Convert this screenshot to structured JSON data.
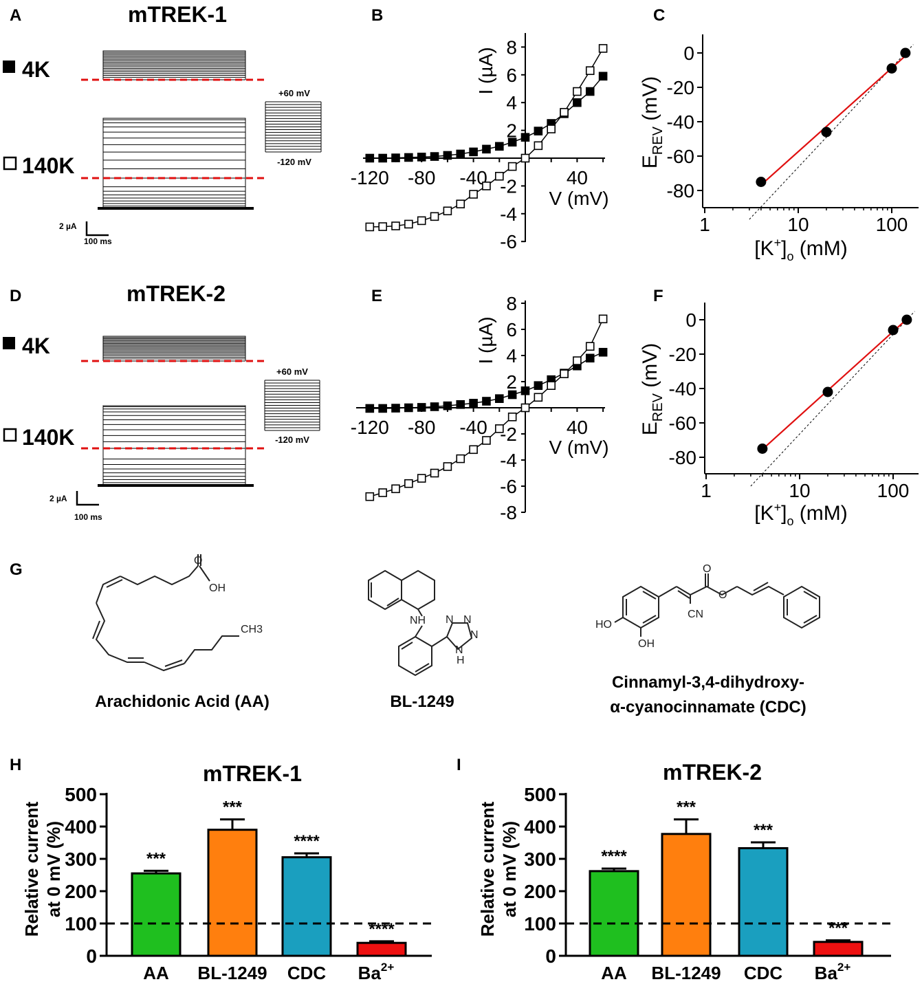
{
  "panel_letters": {
    "A": "A",
    "B": "B",
    "C": "C",
    "D": "D",
    "E": "E",
    "F": "F",
    "G": "G",
    "H": "H",
    "I": "I"
  },
  "traces": [
    {
      "title": "mTREK-1",
      "label_4k": "4K",
      "label_140k": "140K",
      "protocol_top": "+60 mV",
      "protocol_bottom": "-120 mV",
      "scale_current": "2 µA",
      "scale_time": "100 ms",
      "n_sweeps": 19
    },
    {
      "title": "mTREK-2",
      "label_4k": "4K",
      "label_140k": "140K",
      "protocol_top": "+60 mV",
      "protocol_bottom": "-120 mV",
      "scale_current": "2 µA",
      "scale_time": "100 ms",
      "n_sweeps": 19
    }
  ],
  "structures": {
    "aa": {
      "name": "Arachidonic Acid (AA)",
      "atoms": {
        "O": "O",
        "OH": "OH",
        "CH3": "CH3"
      }
    },
    "bl": {
      "name": "BL-1249",
      "atoms": {
        "NH": "NH",
        "N1": "N",
        "N2": "N",
        "N3": "N",
        "N4": "N",
        "H": "H"
      }
    },
    "cdc": {
      "name_line1": "Cinnamyl-3,4-dihydroxy-",
      "name_line2": "α-cyanocinnamate (CDC)",
      "atoms": {
        "O1": "O",
        "O2": "O",
        "CN": "CN",
        "HO": "HO",
        "OH": "OH"
      }
    }
  },
  "chart_data": [
    {
      "id": "B",
      "type": "scatter",
      "panel": "B",
      "xlabel": "V (mV)",
      "ylabel": "I (µA)",
      "xlim": [
        -125,
        60
      ],
      "ylim": [
        -6,
        8
      ],
      "x_ticks": [
        -120,
        -80,
        -40,
        40
      ],
      "y_ticks": [
        -6,
        -4,
        -2,
        2,
        4,
        6,
        8
      ],
      "x": [
        -120,
        -110,
        -100,
        -90,
        -80,
        -70,
        -60,
        -50,
        -40,
        -30,
        -20,
        -10,
        0,
        10,
        20,
        30,
        40,
        50,
        60
      ],
      "series": [
        {
          "name": "4K",
          "marker": "filled-square",
          "values": [
            0,
            0,
            0.02,
            0.05,
            0.08,
            0.12,
            0.2,
            0.3,
            0.45,
            0.65,
            0.85,
            1.15,
            1.5,
            1.95,
            2.5,
            3.2,
            4.0,
            4.8,
            5.9
          ]
        },
        {
          "name": "140K",
          "marker": "open-square",
          "values": [
            -4.95,
            -4.93,
            -4.88,
            -4.75,
            -4.5,
            -4.2,
            -3.8,
            -3.3,
            -2.6,
            -2.0,
            -1.3,
            -0.6,
            0,
            0.9,
            2.1,
            3.3,
            4.8,
            6.3,
            7.9
          ]
        }
      ]
    },
    {
      "id": "C",
      "type": "scatter",
      "panel": "C",
      "xlabel": "[K+]o (mM)",
      "ylabel": "EREV (mV)",
      "xscale": "log",
      "xlim": [
        1,
        150
      ],
      "ylim": [
        -90,
        10
      ],
      "x_ticks": [
        1,
        10,
        100
      ],
      "y_ticks": [
        0,
        -20,
        -40,
        -60,
        -80
      ],
      "x": [
        4,
        20,
        100,
        140
      ],
      "values": [
        -75,
        -46,
        -9,
        0
      ],
      "fit": "linear (red)",
      "reference": "Nernst (dashed)"
    },
    {
      "id": "E",
      "type": "scatter",
      "panel": "E",
      "xlabel": "V (mV)",
      "ylabel": "I (µA)",
      "xlim": [
        -125,
        60
      ],
      "ylim": [
        -8,
        8
      ],
      "x_ticks": [
        -120,
        -80,
        -40,
        40
      ],
      "y_ticks": [
        -8,
        -6,
        -4,
        -2,
        2,
        4,
        6,
        8
      ],
      "x": [
        -120,
        -110,
        -100,
        -90,
        -80,
        -70,
        -60,
        -50,
        -40,
        -30,
        -20,
        -10,
        0,
        10,
        20,
        30,
        40,
        50,
        60
      ],
      "series": [
        {
          "name": "4K",
          "marker": "filled-square",
          "values": [
            -0.05,
            -0.05,
            -0.03,
            0,
            0.03,
            0.08,
            0.15,
            0.25,
            0.35,
            0.5,
            0.7,
            1.0,
            1.3,
            1.7,
            2.15,
            2.65,
            3.2,
            3.8,
            4.25
          ]
        },
        {
          "name": "140K",
          "marker": "open-square",
          "values": [
            -6.8,
            -6.5,
            -6.2,
            -5.8,
            -5.4,
            -5.0,
            -4.5,
            -3.9,
            -3.2,
            -2.5,
            -1.6,
            -0.7,
            0,
            0.8,
            1.7,
            2.6,
            3.6,
            4.7,
            6.8
          ]
        }
      ]
    },
    {
      "id": "F",
      "type": "scatter",
      "panel": "F",
      "xlabel": "[K+]o (mM)",
      "ylabel": "EREV (mV)",
      "xscale": "log",
      "xlim": [
        1,
        150
      ],
      "ylim": [
        -90,
        10
      ],
      "x_ticks": [
        1,
        10,
        100
      ],
      "y_ticks": [
        0,
        -20,
        -40,
        -60,
        -80
      ],
      "x": [
        4,
        20,
        100,
        140
      ],
      "values": [
        -75,
        -42,
        -6,
        0
      ],
      "fit": "linear (red)",
      "reference": "Nernst (dashed)"
    },
    {
      "id": "H",
      "type": "bar",
      "panel": "H",
      "title": "mTREK-1",
      "ylabel": "Relative current at 0 mV (%)",
      "ylabel_line1": "Relative current",
      "ylabel_line2": "at 0 mV (%)",
      "ylim": [
        0,
        500
      ],
      "y_ticks": [
        0,
        100,
        200,
        300,
        400,
        500
      ],
      "baseline": 100,
      "categories": [
        "AA",
        "BL-1249",
        "CDC",
        "Ba2+"
      ],
      "values": [
        255,
        390,
        305,
        40
      ],
      "errors": [
        8,
        32,
        12,
        5
      ],
      "significance": [
        "***",
        "***",
        "****",
        "****"
      ],
      "colors": [
        "#1fbf1f",
        "#ff7f0e",
        "#1a9fbf",
        "#ee1111"
      ]
    },
    {
      "id": "I",
      "type": "bar",
      "panel": "I",
      "title": "mTREK-2",
      "ylabel": "Relative current at 0 mV (%)",
      "ylabel_line1": "Relative current",
      "ylabel_line2": "at 0 mV (%)",
      "ylim": [
        0,
        500
      ],
      "y_ticks": [
        0,
        100,
        200,
        300,
        400,
        500
      ],
      "baseline": 100,
      "categories": [
        "AA",
        "BL-1249",
        "CDC",
        "Ba2+"
      ],
      "values": [
        262,
        377,
        333,
        43
      ],
      "errors": [
        8,
        45,
        18,
        5
      ],
      "significance": [
        "****",
        "***",
        "***",
        "***"
      ],
      "colors": [
        "#1fbf1f",
        "#ff7f0e",
        "#1a9fbf",
        "#ee1111"
      ]
    }
  ]
}
